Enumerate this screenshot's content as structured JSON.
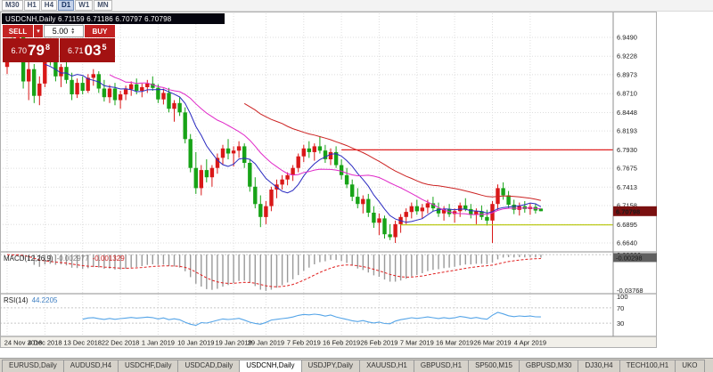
{
  "toolbar": {
    "timeframes": [
      "M30",
      "H1",
      "H4",
      "D1",
      "W1",
      "MN"
    ],
    "active": "D1"
  },
  "chart_header": {
    "title": "USDCNH,Daily  6.71159 6.71186 6.70797 6.70798"
  },
  "trade_panel": {
    "sell_label": "SELL",
    "buy_label": "BUY",
    "volume": "5.00",
    "sell_price": {
      "prefix": "6.70",
      "big": "79",
      "sup": "8"
    },
    "buy_price": {
      "prefix": "6.71",
      "big": "03",
      "sup": "5"
    }
  },
  "price_axis": {
    "labels": [
      "6.9490",
      "6.9228",
      "6.8973",
      "6.8710",
      "6.8448",
      "6.8193",
      "6.7930",
      "6.7675",
      "6.7413",
      "6.7158",
      "6.6895",
      "6.6640"
    ],
    "current": "6.70798"
  },
  "chart_data": {
    "type": "candlestick",
    "symbol": "USDCNH",
    "timeframe": "Daily",
    "bull_color": "#d91818",
    "bear_color": "#17a317",
    "y_range": [
      6.664,
      6.949
    ],
    "x_tick_labels": [
      "24 Nov 2018",
      "4 Dec 2018",
      "13 Dec 2018",
      "22 Dec 2018",
      "1 Jan 2019",
      "10 Jan 2019",
      "19 Jan 2019",
      "29 Jan 2019",
      "7 Feb 2019",
      "16 Feb 2019",
      "26 Feb 2019",
      "7 Mar 2019",
      "16 Mar 2019",
      "26 Mar 2019",
      "4 Apr 2019"
    ],
    "x_tick_indices": [
      0,
      7,
      14,
      21,
      28,
      35,
      42,
      48,
      55,
      62,
      69,
      76,
      83,
      90,
      97
    ],
    "hlines": [
      {
        "price": 6.793,
        "color": "#e02020",
        "start_index": 62
      },
      {
        "price": 6.689,
        "color": "#b4c400",
        "start_index": 73
      }
    ],
    "moving_averages": [
      {
        "period": 8,
        "color": "#2a2ac0"
      },
      {
        "period": 20,
        "color": "#e028c8"
      },
      {
        "period": 45,
        "color": "#cc2222"
      }
    ],
    "ohlc": [
      [
        6.908,
        6.946,
        6.898,
        6.94
      ],
      [
        6.94,
        6.952,
        6.92,
        6.926
      ],
      [
        6.926,
        6.957,
        6.916,
        6.95
      ],
      [
        6.95,
        6.955,
        6.878,
        6.888
      ],
      [
        6.888,
        6.916,
        6.862,
        6.905
      ],
      [
        6.905,
        6.912,
        6.858,
        6.868
      ],
      [
        6.868,
        6.895,
        6.855,
        6.885
      ],
      [
        6.885,
        6.94,
        6.88,
        6.932
      ],
      [
        6.932,
        6.948,
        6.91,
        6.915
      ],
      [
        6.915,
        6.922,
        6.888,
        6.895
      ],
      [
        6.895,
        6.912,
        6.88,
        6.908
      ],
      [
        6.908,
        6.915,
        6.885,
        6.89
      ],
      [
        6.89,
        6.9,
        6.862,
        6.87
      ],
      [
        6.87,
        6.892,
        6.865,
        6.886
      ],
      [
        6.886,
        6.895,
        6.87,
        6.875
      ],
      [
        6.875,
        6.898,
        6.872,
        6.893
      ],
      [
        6.893,
        6.905,
        6.882,
        6.898
      ],
      [
        6.898,
        6.902,
        6.872,
        6.878
      ],
      [
        6.878,
        6.89,
        6.86,
        6.866
      ],
      [
        6.866,
        6.883,
        6.858,
        6.878
      ],
      [
        6.878,
        6.886,
        6.855,
        6.862
      ],
      [
        6.862,
        6.875,
        6.85,
        6.87
      ],
      [
        6.87,
        6.882,
        6.862,
        6.877
      ],
      [
        6.877,
        6.888,
        6.868,
        6.884
      ],
      [
        6.884,
        6.892,
        6.87,
        6.875
      ],
      [
        6.875,
        6.885,
        6.866,
        6.88
      ],
      [
        6.88,
        6.89,
        6.872,
        6.885
      ],
      [
        6.885,
        6.895,
        6.875,
        6.879
      ],
      [
        6.879,
        6.884,
        6.858,
        6.863
      ],
      [
        6.863,
        6.878,
        6.856,
        6.872
      ],
      [
        6.872,
        6.879,
        6.845,
        6.85
      ],
      [
        6.85,
        6.862,
        6.832,
        6.858
      ],
      [
        6.858,
        6.866,
        6.84,
        6.845
      ],
      [
        6.845,
        6.852,
        6.802,
        6.808
      ],
      [
        6.808,
        6.815,
        6.762,
        6.768
      ],
      [
        6.768,
        6.79,
        6.732,
        6.74
      ],
      [
        6.74,
        6.772,
        6.73,
        6.765
      ],
      [
        6.765,
        6.78,
        6.748,
        6.755
      ],
      [
        6.755,
        6.772,
        6.742,
        6.768
      ],
      [
        6.768,
        6.788,
        6.76,
        6.782
      ],
      [
        6.782,
        6.8,
        6.772,
        6.795
      ],
      [
        6.795,
        6.808,
        6.78,
        6.788
      ],
      [
        6.788,
        6.798,
        6.77,
        6.792
      ],
      [
        6.792,
        6.805,
        6.782,
        6.798
      ],
      [
        6.798,
        6.802,
        6.768,
        6.775
      ],
      [
        6.775,
        6.78,
        6.735,
        6.742
      ],
      [
        6.742,
        6.755,
        6.712,
        6.718
      ],
      [
        6.718,
        6.73,
        6.686,
        6.7
      ],
      [
        6.7,
        6.722,
        6.69,
        6.715
      ],
      [
        6.715,
        6.742,
        6.708,
        6.738
      ],
      [
        6.738,
        6.752,
        6.726,
        6.745
      ],
      [
        6.745,
        6.758,
        6.738,
        6.752
      ],
      [
        6.752,
        6.762,
        6.744,
        6.758
      ],
      [
        6.758,
        6.772,
        6.75,
        6.768
      ],
      [
        6.768,
        6.788,
        6.762,
        6.784
      ],
      [
        6.784,
        6.8,
        6.776,
        6.795
      ],
      [
        6.795,
        6.805,
        6.782,
        6.79
      ],
      [
        6.79,
        6.802,
        6.778,
        6.798
      ],
      [
        6.798,
        6.812,
        6.788,
        6.792
      ],
      [
        6.792,
        6.8,
        6.775,
        6.78
      ],
      [
        6.78,
        6.795,
        6.772,
        6.79
      ],
      [
        6.79,
        6.798,
        6.768,
        6.772
      ],
      [
        6.772,
        6.78,
        6.752,
        6.758
      ],
      [
        6.758,
        6.768,
        6.74,
        6.745
      ],
      [
        6.745,
        6.752,
        6.722,
        6.728
      ],
      [
        6.728,
        6.74,
        6.712,
        6.718
      ],
      [
        6.718,
        6.73,
        6.705,
        6.725
      ],
      [
        6.725,
        6.732,
        6.7,
        6.706
      ],
      [
        6.706,
        6.715,
        6.685,
        6.692
      ],
      [
        6.692,
        6.705,
        6.675,
        6.698
      ],
      [
        6.698,
        6.702,
        6.67,
        6.676
      ],
      [
        6.676,
        6.69,
        6.668,
        6.672
      ],
      [
        6.672,
        6.695,
        6.664,
        6.69
      ],
      [
        6.69,
        6.704,
        6.678,
        6.7
      ],
      [
        6.7,
        6.712,
        6.69,
        6.707
      ],
      [
        6.707,
        6.72,
        6.698,
        6.715
      ],
      [
        6.715,
        6.724,
        6.703,
        6.708
      ],
      [
        6.708,
        6.718,
        6.698,
        6.713
      ],
      [
        6.713,
        6.724,
        6.705,
        6.719
      ],
      [
        6.719,
        6.728,
        6.708,
        6.712
      ],
      [
        6.712,
        6.72,
        6.7,
        6.705
      ],
      [
        6.705,
        6.715,
        6.695,
        6.711
      ],
      [
        6.711,
        6.718,
        6.7,
        6.704
      ],
      [
        6.704,
        6.712,
        6.692,
        6.708
      ],
      [
        6.708,
        6.72,
        6.7,
        6.716
      ],
      [
        6.716,
        6.726,
        6.708,
        6.711
      ],
      [
        6.711,
        6.718,
        6.698,
        6.703
      ],
      [
        6.703,
        6.712,
        6.69,
        6.708
      ],
      [
        6.708,
        6.716,
        6.696,
        6.7
      ],
      [
        6.7,
        6.71,
        6.688,
        6.695
      ],
      [
        6.695,
        6.722,
        6.664,
        6.718
      ],
      [
        6.718,
        6.745,
        6.71,
        6.74
      ],
      [
        6.74,
        6.748,
        6.724,
        6.73
      ],
      [
        6.73,
        6.736,
        6.712,
        6.717
      ],
      [
        6.717,
        6.724,
        6.704,
        6.71
      ],
      [
        6.71,
        6.72,
        6.702,
        6.715
      ],
      [
        6.715,
        6.722,
        6.706,
        6.711
      ],
      [
        6.711,
        6.719,
        6.703,
        6.714
      ],
      [
        6.714,
        6.7185,
        6.7048,
        6.709
      ],
      [
        6.71159,
        6.71186,
        6.70797,
        6.70798
      ]
    ]
  },
  "macd_panel": {
    "name": "MACD(12,26,9)",
    "value_main": "-0.002977",
    "value_signal": "-0.001329",
    "axis_labels": [
      "0.00299",
      "0.00000",
      "-0.03768"
    ],
    "current": "-0.00298",
    "params": {
      "fast": 12,
      "slow": 26,
      "signal": 9
    }
  },
  "rsi_panel": {
    "name": "RSI(14)",
    "value": "44.2205",
    "period": 14,
    "levels": [
      70,
      30
    ],
    "axis_labels": [
      "100",
      "70",
      "30"
    ],
    "current": "44.2205"
  },
  "tabs": {
    "items": [
      "EURUSD,Daily",
      "AUDUSD,H4",
      "USDCHF,Daily",
      "USDCAD,Daily",
      "USDCNH,Daily",
      "USDJPY,Daily",
      "XAUUSD,H1",
      "GBPUSD,H1",
      "SP500,M15",
      "GBPUSD,M30",
      "DJ30,H4",
      "TECH100,H1",
      "UKO"
    ],
    "active": "USDCNH,Daily"
  }
}
